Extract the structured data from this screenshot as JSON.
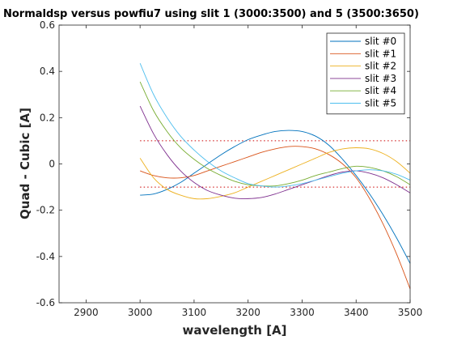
{
  "chart_data": {
    "type": "line",
    "title": "Normaldsp versus powfiu7 using slit 1 (3000:3500) and 5 (3500:3650)",
    "xlabel": "wavelength [A]",
    "ylabel": "Quad - Cubic  [A]",
    "xlim": [
      2850,
      3500
    ],
    "ylim": [
      -0.6,
      0.6
    ],
    "xticks": [
      2900,
      3000,
      3100,
      3200,
      3300,
      3400,
      3500
    ],
    "yticks": [
      -0.6,
      -0.4,
      -0.2,
      0,
      0.2,
      0.4,
      0.6
    ],
    "x": [
      3000,
      3025,
      3050,
      3075,
      3100,
      3125,
      3150,
      3175,
      3200,
      3225,
      3250,
      3275,
      3300,
      3325,
      3350,
      3375,
      3400,
      3425,
      3450,
      3475,
      3500
    ],
    "legend_position": "top-right",
    "grid": false,
    "series": [
      {
        "name": "slit #0",
        "color": "#0072BD",
        "values": [
          -0.135,
          -0.13,
          -0.11,
          -0.08,
          -0.04,
          0.0,
          0.04,
          0.075,
          0.105,
          0.125,
          0.14,
          0.145,
          0.14,
          0.12,
          0.08,
          0.02,
          -0.05,
          -0.13,
          -0.22,
          -0.32,
          -0.43
        ]
      },
      {
        "name": "slit #1",
        "color": "#D95319",
        "values": [
          -0.03,
          -0.05,
          -0.06,
          -0.06,
          -0.05,
          -0.03,
          -0.01,
          0.01,
          0.03,
          0.05,
          0.065,
          0.075,
          0.075,
          0.065,
          0.04,
          0.0,
          -0.06,
          -0.15,
          -0.26,
          -0.39,
          -0.54
        ]
      },
      {
        "name": "slit #2",
        "color": "#EDB120",
        "values": [
          0.025,
          -0.06,
          -0.11,
          -0.135,
          -0.15,
          -0.15,
          -0.14,
          -0.125,
          -0.1,
          -0.075,
          -0.05,
          -0.025,
          0.0,
          0.025,
          0.05,
          0.065,
          0.07,
          0.065,
          0.045,
          0.01,
          -0.04
        ]
      },
      {
        "name": "slit #3",
        "color": "#7E2F8E",
        "values": [
          0.25,
          0.13,
          0.04,
          -0.03,
          -0.08,
          -0.115,
          -0.135,
          -0.148,
          -0.15,
          -0.145,
          -0.13,
          -0.11,
          -0.09,
          -0.07,
          -0.05,
          -0.035,
          -0.03,
          -0.04,
          -0.06,
          -0.09,
          -0.125
        ]
      },
      {
        "name": "slit #4",
        "color": "#77AC30",
        "values": [
          0.355,
          0.23,
          0.14,
          0.07,
          0.02,
          -0.02,
          -0.05,
          -0.075,
          -0.09,
          -0.095,
          -0.095,
          -0.085,
          -0.07,
          -0.05,
          -0.035,
          -0.02,
          -0.01,
          -0.015,
          -0.03,
          -0.055,
          -0.09
        ]
      },
      {
        "name": "slit #5",
        "color": "#4DBEEE",
        "values": [
          0.435,
          0.3,
          0.2,
          0.12,
          0.06,
          0.01,
          -0.03,
          -0.06,
          -0.085,
          -0.095,
          -0.1,
          -0.095,
          -0.085,
          -0.07,
          -0.055,
          -0.04,
          -0.03,
          -0.025,
          -0.03,
          -0.045,
          -0.07
        ]
      }
    ],
    "reference_lines": {
      "color": "#CC0000",
      "style": "dotted",
      "x_range": [
        3000,
        3500
      ],
      "y_values": [
        0.1,
        -0.1
      ]
    }
  }
}
